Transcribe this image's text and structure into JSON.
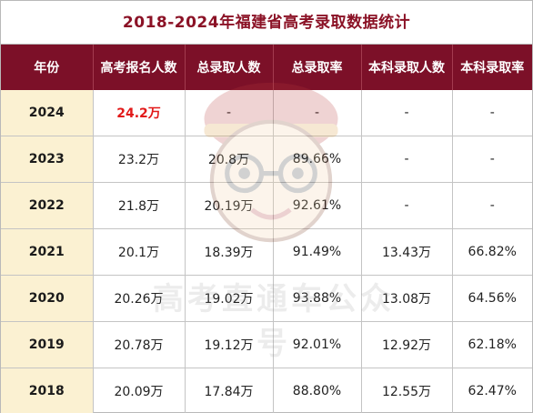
{
  "title": "2018-2024年福建省高考录取数据统计",
  "columns": [
    "年份",
    "高考报名人数",
    "总录取人数",
    "总录取率",
    "本科录取人数",
    "本科录取率"
  ],
  "rows": [
    {
      "year": "2024",
      "applicants": "24.2万",
      "total_admitted": "-",
      "total_rate": "-",
      "bachelor_admitted": "-",
      "bachelor_rate": "-"
    },
    {
      "year": "2023",
      "applicants": "23.2万",
      "total_admitted": "20.8万",
      "total_rate": "89.66%",
      "bachelor_admitted": "-",
      "bachelor_rate": "-"
    },
    {
      "year": "2022",
      "applicants": "21.8万",
      "total_admitted": "20.19万",
      "total_rate": "92.61%",
      "bachelor_admitted": "-",
      "bachelor_rate": "-"
    },
    {
      "year": "2021",
      "applicants": "20.1万",
      "total_admitted": "18.39万",
      "total_rate": "91.49%",
      "bachelor_admitted": "13.43万",
      "bachelor_rate": "66.82%"
    },
    {
      "year": "2020",
      "applicants": "20.26万",
      "total_admitted": "19.02万",
      "total_rate": "93.88%",
      "bachelor_admitted": "13.08万",
      "bachelor_rate": "64.56%"
    },
    {
      "year": "2019",
      "applicants": "20.78万",
      "total_admitted": "19.12万",
      "total_rate": "92.01%",
      "bachelor_admitted": "12.92万",
      "bachelor_rate": "62.18%"
    },
    {
      "year": "2018",
      "applicants": "20.09万",
      "total_admitted": "17.84万",
      "total_rate": "88.80%",
      "bachelor_admitted": "12.55万",
      "bachelor_rate": "62.47%"
    }
  ],
  "watermark": "高考直通车公众号",
  "colors": {
    "header_bg": "#7c1028",
    "title_text": "#8b1226",
    "year_bg": "#fbf1d2",
    "highlight": "#e21a1a"
  }
}
